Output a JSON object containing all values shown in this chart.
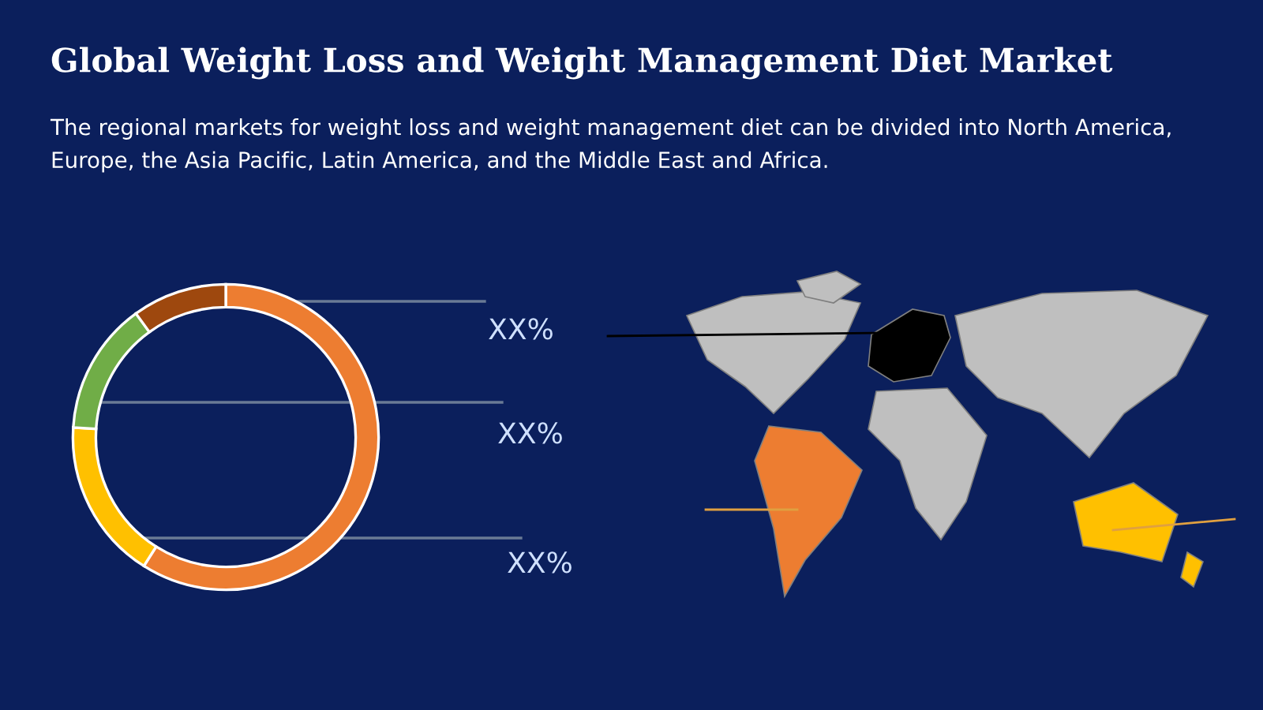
{
  "chart_data": {
    "type": "donut",
    "title": "Global Weight Loss and Weight Management Diet Market",
    "subtitle": "The regional markets for weight loss and weight management diet can be divided into North America, Europe, the Asia Pacific, Latin America, and the Middle East and Africa.",
    "categories": [
      null,
      null,
      null,
      null
    ],
    "values": [
      59,
      17,
      14,
      10
    ],
    "colors": [
      "#ed7d31",
      "#ffc000",
      "#70ad47",
      "#9e480e"
    ],
    "annotations": [
      "XX%",
      "XX%",
      "XX%"
    ],
    "legend": false
  }
}
